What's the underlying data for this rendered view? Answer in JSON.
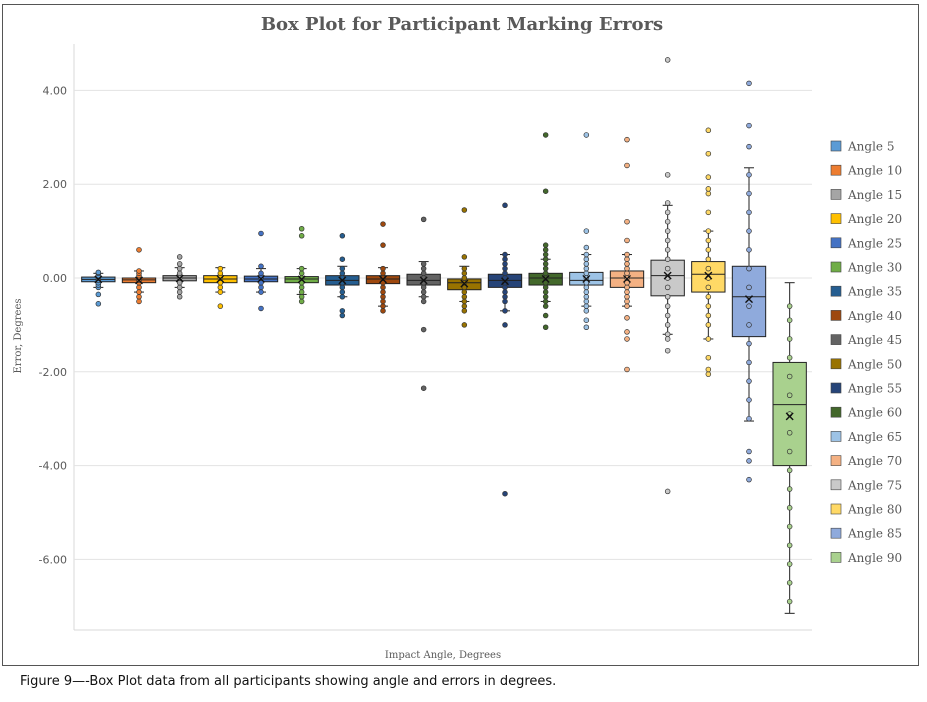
{
  "chart_data": {
    "type": "box",
    "title": "Box Plot for Participant Marking Errors",
    "xlabel": "Impact Angle, Degrees",
    "ylabel": "Error, Degrees",
    "ylim": [
      -7.5,
      5.0
    ],
    "y_ticks": [
      "4.00",
      "2.00",
      "0.00",
      "-2.00",
      "-4.00",
      "-6.00"
    ],
    "y_tick_values": [
      4,
      2,
      0,
      -2,
      -4,
      -6
    ],
    "grid": true,
    "legend_position": "right",
    "series": [
      {
        "name": "Angle 5",
        "color": "#5b9bd5",
        "q1": -0.08,
        "median": -0.03,
        "q3": 0.02,
        "mean": -0.03,
        "whisker_low": -0.2,
        "whisker_high": 0.1,
        "points": [
          -0.55,
          -0.35,
          -0.2,
          -0.15,
          -0.1,
          -0.05,
          0,
          0.05,
          0.1,
          0.12
        ]
      },
      {
        "name": "Angle 10",
        "color": "#ed7d31",
        "q1": -0.1,
        "median": -0.04,
        "q3": 0.0,
        "mean": -0.05,
        "whisker_low": -0.3,
        "whisker_high": 0.15,
        "points": [
          -0.5,
          -0.4,
          -0.3,
          -0.2,
          -0.1,
          -0.05,
          0,
          0.05,
          0.1,
          0.15,
          0.6
        ]
      },
      {
        "name": "Angle 15",
        "color": "#a5a5a5",
        "q1": -0.06,
        "median": 0.0,
        "q3": 0.05,
        "mean": -0.01,
        "whisker_low": -0.2,
        "whisker_high": 0.22,
        "points": [
          -0.4,
          -0.3,
          -0.2,
          -0.1,
          0,
          0.05,
          0.1,
          0.2,
          0.3,
          0.45
        ]
      },
      {
        "name": "Angle 20",
        "color": "#ffc000",
        "q1": -0.1,
        "median": -0.02,
        "q3": 0.05,
        "mean": -0.02,
        "whisker_low": -0.3,
        "whisker_high": 0.22,
        "points": [
          -0.6,
          -0.3,
          -0.2,
          -0.1,
          0,
          0.05,
          0.1,
          0.2
        ]
      },
      {
        "name": "Angle 25",
        "color": "#4472c4",
        "q1": -0.08,
        "median": -0.02,
        "q3": 0.04,
        "mean": -0.02,
        "whisker_low": -0.3,
        "whisker_high": 0.2,
        "points": [
          -0.65,
          -0.3,
          -0.2,
          -0.1,
          0,
          0.05,
          0.1,
          0.25,
          0.95
        ]
      },
      {
        "name": "Angle 30",
        "color": "#70ad47",
        "q1": -0.1,
        "median": -0.02,
        "q3": 0.03,
        "mean": -0.03,
        "whisker_low": -0.35,
        "whisker_high": 0.2,
        "points": [
          -0.5,
          -0.4,
          -0.3,
          -0.2,
          -0.1,
          0,
          0.1,
          0.2,
          0.9,
          1.05
        ]
      },
      {
        "name": "Angle 35",
        "color": "#255e91",
        "q1": -0.15,
        "median": -0.05,
        "q3": 0.05,
        "mean": -0.05,
        "whisker_low": -0.4,
        "whisker_high": 0.25,
        "points": [
          -0.8,
          -0.7,
          -0.4,
          -0.3,
          -0.2,
          -0.1,
          0,
          0.1,
          0.2,
          0.4,
          0.9
        ]
      },
      {
        "name": "Angle 40",
        "color": "#9e480e",
        "q1": -0.12,
        "median": -0.02,
        "q3": 0.05,
        "mean": -0.03,
        "whisker_low": -0.6,
        "whisker_high": 0.22,
        "points": [
          -0.7,
          -0.6,
          -0.5,
          -0.4,
          -0.3,
          -0.2,
          -0.1,
          0,
          0.1,
          0.2,
          0.7,
          1.15
        ]
      },
      {
        "name": "Angle 45",
        "color": "#636363",
        "q1": -0.15,
        "median": -0.05,
        "q3": 0.08,
        "mean": -0.05,
        "whisker_low": -0.4,
        "whisker_high": 0.35,
        "points": [
          -2.35,
          -1.1,
          -0.5,
          -0.4,
          -0.3,
          -0.2,
          -0.1,
          0,
          0.1,
          0.2,
          0.3,
          1.25
        ]
      },
      {
        "name": "Angle 50",
        "color": "#997300",
        "q1": -0.25,
        "median": -0.1,
        "q3": -0.02,
        "mean": -0.12,
        "whisker_low": -0.5,
        "whisker_high": 0.25,
        "points": [
          -1.0,
          -0.7,
          -0.6,
          -0.5,
          -0.4,
          -0.3,
          -0.2,
          -0.1,
          0,
          0.1,
          0.2,
          0.45,
          1.45
        ]
      },
      {
        "name": "Angle 55",
        "color": "#264478",
        "q1": -0.2,
        "median": -0.05,
        "q3": 0.08,
        "mean": -0.07,
        "whisker_low": -0.7,
        "whisker_high": 0.5,
        "points": [
          -4.6,
          -1.0,
          -0.7,
          -0.5,
          -0.4,
          -0.3,
          -0.2,
          -0.1,
          0,
          0.1,
          0.2,
          0.3,
          0.4,
          0.5,
          1.55
        ]
      },
      {
        "name": "Angle 60",
        "color": "#43682b",
        "q1": -0.15,
        "median": 0.0,
        "q3": 0.1,
        "mean": -0.02,
        "whisker_low": -0.5,
        "whisker_high": 0.4,
        "points": [
          -1.05,
          -0.8,
          -0.6,
          -0.5,
          -0.4,
          -0.3,
          -0.2,
          -0.1,
          0,
          0.1,
          0.2,
          0.3,
          0.4,
          0.5,
          0.6,
          0.7,
          1.85,
          3.05
        ]
      },
      {
        "name": "Angle 65",
        "color": "#9dc3e6",
        "q1": -0.15,
        "median": -0.05,
        "q3": 0.12,
        "mean": -0.02,
        "whisker_low": -0.6,
        "whisker_high": 0.5,
        "points": [
          -1.05,
          -0.9,
          -0.7,
          -0.6,
          -0.5,
          -0.4,
          -0.3,
          -0.2,
          -0.1,
          0,
          0.1,
          0.2,
          0.3,
          0.4,
          0.5,
          0.65,
          1.0,
          3.05
        ]
      },
      {
        "name": "Angle 70",
        "color": "#f4b183",
        "q1": -0.2,
        "median": 0.0,
        "q3": 0.15,
        "mean": -0.02,
        "whisker_low": -0.6,
        "whisker_high": 0.5,
        "points": [
          -1.95,
          -1.3,
          -1.15,
          -0.85,
          -0.6,
          -0.5,
          -0.4,
          -0.3,
          -0.2,
          -0.1,
          0,
          0.1,
          0.2,
          0.3,
          0.4,
          0.5,
          0.8,
          1.2,
          2.4,
          2.95
        ]
      },
      {
        "name": "Angle 75",
        "color": "#c9c9c9",
        "q1": -0.38,
        "median": 0.05,
        "q3": 0.38,
        "mean": 0.05,
        "whisker_low": -1.2,
        "whisker_high": 1.55,
        "points": [
          -4.55,
          -1.55,
          -1.3,
          -1.2,
          -1.0,
          -0.8,
          -0.6,
          -0.4,
          -0.2,
          0,
          0.2,
          0.4,
          0.6,
          0.8,
          1.0,
          1.2,
          1.4,
          1.6,
          2.2,
          4.65
        ]
      },
      {
        "name": "Angle 80",
        "color": "#ffd966",
        "q1": -0.3,
        "median": 0.08,
        "q3": 0.35,
        "mean": 0.05,
        "whisker_low": -1.3,
        "whisker_high": 1.0,
        "points": [
          -2.05,
          -1.95,
          -1.7,
          -1.3,
          -1.0,
          -0.8,
          -0.6,
          -0.4,
          -0.2,
          0,
          0.2,
          0.4,
          0.6,
          0.8,
          1.0,
          1.4,
          1.8,
          1.9,
          2.15,
          2.65,
          3.15
        ]
      },
      {
        "name": "Angle 85",
        "color": "#8faadc",
        "q1": -1.25,
        "median": -0.4,
        "q3": 0.25,
        "mean": -0.45,
        "whisker_low": -3.05,
        "whisker_high": 2.35,
        "points": [
          -4.3,
          -3.9,
          -3.7,
          -3.0,
          -2.6,
          -2.2,
          -1.8,
          -1.4,
          -1.0,
          -0.6,
          -0.2,
          0.2,
          0.6,
          1.0,
          1.4,
          1.8,
          2.2,
          2.8,
          3.25,
          4.15
        ]
      },
      {
        "name": "Angle 90",
        "color": "#a9d18e",
        "q1": -4.0,
        "median": -2.7,
        "q3": -1.8,
        "mean": -2.95,
        "whisker_low": -7.15,
        "whisker_high": -0.1,
        "points": [
          -6.9,
          -6.5,
          -6.1,
          -5.7,
          -5.3,
          -4.9,
          -4.5,
          -4.1,
          -3.7,
          -3.3,
          -2.9,
          -2.5,
          -2.1,
          -1.7,
          -1.3,
          -0.9,
          -0.6
        ]
      }
    ]
  },
  "caption": "Figure 9—-Box Plot data from all participants showing angle and errors in degrees."
}
